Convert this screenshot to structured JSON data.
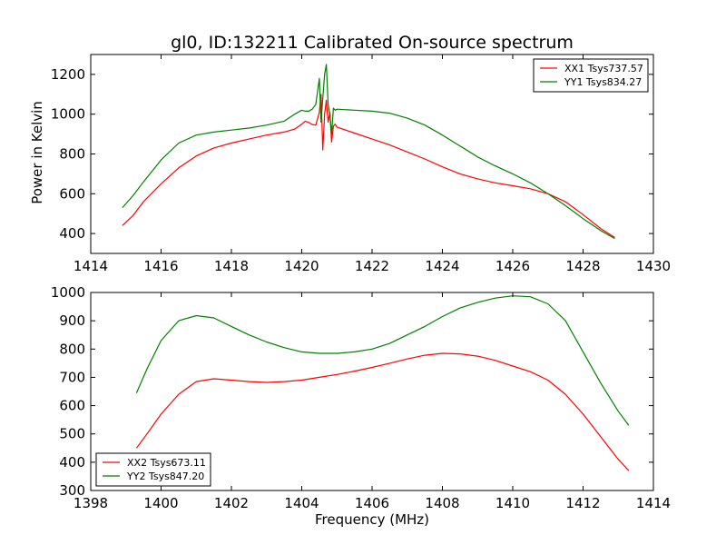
{
  "figure": {
    "title": "gl0, ID:132211 Calibrated On-source spectrum",
    "ylabel": "Power in Kelvin",
    "xlabel": "Frequency (MHz)"
  },
  "chart_data": [
    {
      "type": "line",
      "panel": "top",
      "title": "gl0, ID:132211 Calibrated On-source spectrum",
      "xlabel": "",
      "ylabel": "Power in Kelvin",
      "xlim": [
        1414,
        1430
      ],
      "ylim": [
        300,
        1300
      ],
      "xticks": [
        1414,
        1416,
        1418,
        1420,
        1422,
        1424,
        1426,
        1428,
        1430
      ],
      "yticks": [
        400,
        600,
        800,
        1000,
        1200
      ],
      "grid": false,
      "legend": "top-right",
      "series": [
        {
          "name": "XX1 Tsys737.57",
          "color": "#ff0000",
          "x": [
            1414.9,
            1415.2,
            1415.5,
            1416.0,
            1416.5,
            1417.0,
            1417.5,
            1418.0,
            1418.5,
            1419.0,
            1419.5,
            1419.8,
            1420.0,
            1420.1,
            1420.2,
            1420.3,
            1420.4,
            1420.5,
            1420.55,
            1420.6,
            1420.65,
            1420.7,
            1420.75,
            1420.8,
            1420.85,
            1420.9,
            1420.95,
            1421.0,
            1421.5,
            1422.0,
            1422.5,
            1423.0,
            1423.5,
            1424.0,
            1424.5,
            1425.0,
            1425.5,
            1426.0,
            1426.5,
            1427.0,
            1427.5,
            1428.0,
            1428.5,
            1428.9
          ],
          "y": [
            440,
            490,
            560,
            650,
            730,
            790,
            830,
            855,
            875,
            895,
            910,
            925,
            950,
            965,
            958,
            948,
            945,
            1010,
            1100,
            820,
            1000,
            1070,
            960,
            1010,
            860,
            940,
            950,
            935,
            905,
            875,
            845,
            810,
            775,
            735,
            700,
            675,
            655,
            640,
            625,
            600,
            560,
            495,
            425,
            380
          ]
        },
        {
          "name": "YY1 Tsys834.27",
          "color": "#008000",
          "x": [
            1414.9,
            1415.2,
            1415.5,
            1416.0,
            1416.5,
            1417.0,
            1417.5,
            1418.0,
            1418.5,
            1419.0,
            1419.5,
            1419.8,
            1420.0,
            1420.1,
            1420.2,
            1420.3,
            1420.4,
            1420.5,
            1420.55,
            1420.6,
            1420.65,
            1420.7,
            1420.75,
            1420.8,
            1420.85,
            1420.9,
            1420.95,
            1421.0,
            1421.5,
            1422.0,
            1422.5,
            1423.0,
            1423.5,
            1424.0,
            1424.5,
            1425.0,
            1425.5,
            1426.0,
            1426.5,
            1427.0,
            1427.5,
            1428.0,
            1428.5,
            1428.9
          ],
          "y": [
            530,
            590,
            660,
            770,
            855,
            895,
            910,
            920,
            930,
            945,
            965,
            1000,
            1020,
            1015,
            1015,
            1025,
            1050,
            1180,
            960,
            1080,
            1200,
            1250,
            1050,
            1000,
            900,
            1030,
            1020,
            1025,
            1020,
            1015,
            1005,
            980,
            945,
            895,
            840,
            785,
            740,
            700,
            655,
            600,
            540,
            475,
            415,
            375
          ]
        }
      ]
    },
    {
      "type": "line",
      "panel": "bottom",
      "title": "",
      "xlabel": "Frequency (MHz)",
      "ylabel": "",
      "xlim": [
        1398,
        1414
      ],
      "ylim": [
        300,
        1000
      ],
      "xticks": [
        1398,
        1400,
        1402,
        1404,
        1406,
        1408,
        1410,
        1412,
        1414
      ],
      "yticks": [
        300,
        400,
        500,
        600,
        700,
        800,
        900,
        1000
      ],
      "grid": false,
      "legend": "bottom-left",
      "series": [
        {
          "name": "XX2 Tsys673.11",
          "color": "#ff0000",
          "x": [
            1399.3,
            1399.6,
            1400.0,
            1400.5,
            1401.0,
            1401.5,
            1402.0,
            1402.5,
            1403.0,
            1403.5,
            1404.0,
            1404.5,
            1405.0,
            1405.5,
            1406.0,
            1406.5,
            1407.0,
            1407.5,
            1408.0,
            1408.5,
            1409.0,
            1409.5,
            1410.0,
            1410.5,
            1411.0,
            1411.5,
            1412.0,
            1412.5,
            1413.0,
            1413.3
          ],
          "y": [
            450,
            500,
            570,
            640,
            685,
            695,
            690,
            685,
            682,
            685,
            690,
            700,
            710,
            722,
            735,
            750,
            765,
            778,
            785,
            783,
            775,
            760,
            740,
            720,
            690,
            640,
            570,
            490,
            410,
            370
          ]
        },
        {
          "name": "YY2 Tsys847.20",
          "color": "#008000",
          "x": [
            1399.3,
            1399.6,
            1400.0,
            1400.5,
            1401.0,
            1401.5,
            1402.0,
            1402.5,
            1403.0,
            1403.5,
            1404.0,
            1404.5,
            1405.0,
            1405.5,
            1406.0,
            1406.5,
            1407.0,
            1407.5,
            1408.0,
            1408.5,
            1409.0,
            1409.5,
            1410.0,
            1410.5,
            1411.0,
            1411.5,
            1412.0,
            1412.5,
            1413.0,
            1413.3
          ],
          "y": [
            645,
            730,
            830,
            900,
            918,
            910,
            880,
            850,
            825,
            805,
            790,
            785,
            785,
            790,
            800,
            820,
            850,
            880,
            915,
            945,
            965,
            980,
            988,
            985,
            960,
            900,
            790,
            680,
            580,
            530
          ]
        }
      ]
    }
  ]
}
